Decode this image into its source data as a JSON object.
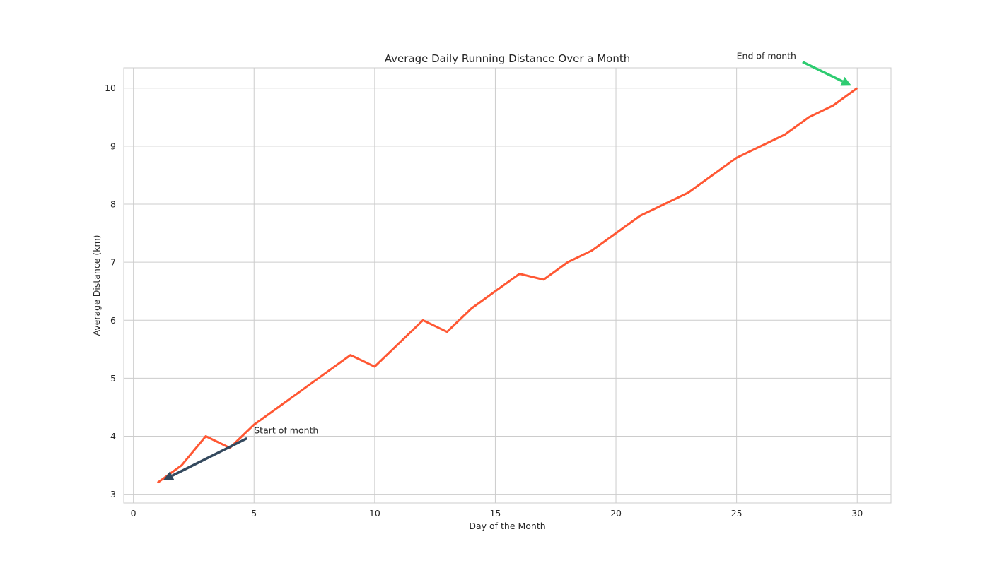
{
  "chart_data": {
    "type": "line",
    "title": "Average Daily Running Distance Over a Month",
    "xlabel": "Day of the Month",
    "ylabel": "Average Distance (km)",
    "xlim": [
      -0.4,
      31.4
    ],
    "ylim": [
      2.85,
      10.35
    ],
    "grid": true,
    "x_ticks": [
      0,
      5,
      10,
      15,
      20,
      25,
      30
    ],
    "y_ticks": [
      3,
      4,
      5,
      6,
      7,
      8,
      9,
      10
    ],
    "line_color": "#ff5733",
    "series": [
      {
        "x": [
          1,
          2,
          3,
          4,
          5,
          6,
          7,
          8,
          9,
          10,
          11,
          12,
          13,
          14,
          15,
          16,
          17,
          18,
          19,
          20,
          21,
          22,
          23,
          24,
          25,
          26,
          27,
          28,
          29,
          30
        ],
        "values": [
          3.2,
          3.5,
          4.0,
          3.8,
          4.2,
          4.5,
          4.8,
          5.1,
          5.4,
          5.2,
          5.6,
          6.0,
          5.8,
          6.2,
          6.5,
          6.8,
          6.7,
          7.0,
          7.2,
          7.5,
          7.8,
          8.0,
          8.2,
          8.5,
          8.8,
          9.0,
          9.2,
          9.5,
          9.7,
          10.0
        ]
      }
    ],
    "annotations": [
      {
        "text": "Start of month",
        "point": [
          1,
          3.2
        ],
        "text_at": [
          5,
          4.05
        ],
        "color": "#34495e"
      },
      {
        "text": "End of month",
        "point": [
          30,
          10.0
        ],
        "text_at": [
          25,
          10.5
        ],
        "color": "#2ecc71"
      }
    ]
  }
}
